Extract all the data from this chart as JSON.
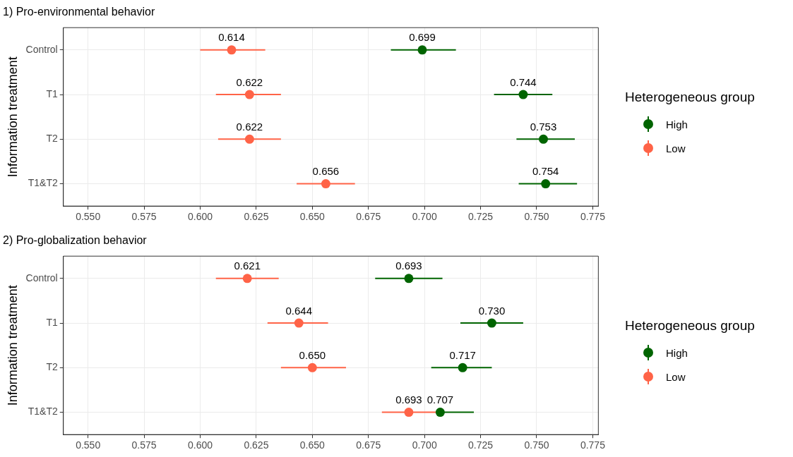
{
  "chart_data": [
    {
      "type": "scatter",
      "orientation": "horizontal",
      "title": "1) Pro-environmental behavior",
      "ylabel": "Information treatment",
      "legend_title": "Heterogeneous group",
      "legend": "right",
      "grid": true,
      "marker": "circle",
      "categories": [
        "Control",
        "T1",
        "T2",
        "T1&T2"
      ],
      "xlim": [
        0.539,
        0.7775
      ],
      "xticks": [
        {
          "value": 0.55,
          "label": "0.550"
        },
        {
          "value": 0.575,
          "label": "0.575"
        },
        {
          "value": 0.6,
          "label": "0.600"
        },
        {
          "value": 0.625,
          "label": "0.625"
        },
        {
          "value": 0.65,
          "label": "0.650"
        },
        {
          "value": 0.675,
          "label": "0.675"
        },
        {
          "value": 0.7,
          "label": "0.700"
        },
        {
          "value": 0.725,
          "label": "0.725"
        },
        {
          "value": 0.75,
          "label": "0.750"
        },
        {
          "value": 0.775,
          "label": "0.775"
        }
      ],
      "series": [
        {
          "name": "High",
          "color": "#006400",
          "values": [
            0.699,
            0.744,
            0.753,
            0.754
          ],
          "errors": [
            [
              0.685,
              0.714
            ],
            [
              0.731,
              0.757
            ],
            [
              0.741,
              0.767
            ],
            [
              0.742,
              0.768
            ]
          ],
          "value_labels": [
            "0.699",
            "0.744",
            "0.753",
            "0.754"
          ]
        },
        {
          "name": "Low",
          "color": "#ff6347",
          "values": [
            0.614,
            0.622,
            0.622,
            0.656
          ],
          "errors": [
            [
              0.6,
              0.629
            ],
            [
              0.607,
              0.636
            ],
            [
              0.608,
              0.636
            ],
            [
              0.643,
              0.669
            ]
          ],
          "value_labels": [
            "0.614",
            "0.622",
            "0.622",
            "0.656"
          ]
        }
      ]
    },
    {
      "type": "scatter",
      "orientation": "horizontal",
      "title": "2) Pro-globalization behavior",
      "ylabel": "Information treatment",
      "legend_title": "Heterogeneous group",
      "legend": "right",
      "grid": true,
      "marker": "circle",
      "categories": [
        "Control",
        "T1",
        "T2",
        "T1&T2"
      ],
      "xlim": [
        0.539,
        0.7775
      ],
      "xticks": [
        {
          "value": 0.55,
          "label": "0.550"
        },
        {
          "value": 0.575,
          "label": "0.575"
        },
        {
          "value": 0.6,
          "label": "0.600"
        },
        {
          "value": 0.625,
          "label": "0.625"
        },
        {
          "value": 0.65,
          "label": "0.650"
        },
        {
          "value": 0.675,
          "label": "0.675"
        },
        {
          "value": 0.7,
          "label": "0.700"
        },
        {
          "value": 0.725,
          "label": "0.725"
        },
        {
          "value": 0.75,
          "label": "0.750"
        },
        {
          "value": 0.775,
          "label": "0.775"
        }
      ],
      "series": [
        {
          "name": "High",
          "color": "#006400",
          "values": [
            0.693,
            0.73,
            0.717,
            0.707
          ],
          "errors": [
            [
              0.678,
              0.708
            ],
            [
              0.716,
              0.744
            ],
            [
              0.703,
              0.73
            ],
            [
              0.707,
              0.722
            ]
          ],
          "value_labels": [
            "0.693",
            "0.730",
            "0.717",
            "0.707"
          ]
        },
        {
          "name": "Low",
          "color": "#ff6347",
          "values": [
            0.621,
            0.644,
            0.65,
            0.693
          ],
          "errors": [
            [
              0.607,
              0.635
            ],
            [
              0.63,
              0.657
            ],
            [
              0.636,
              0.665
            ],
            [
              0.681,
              0.708
            ]
          ],
          "value_labels": [
            "0.621",
            "0.644",
            "0.650",
            "0.693"
          ]
        }
      ]
    }
  ]
}
